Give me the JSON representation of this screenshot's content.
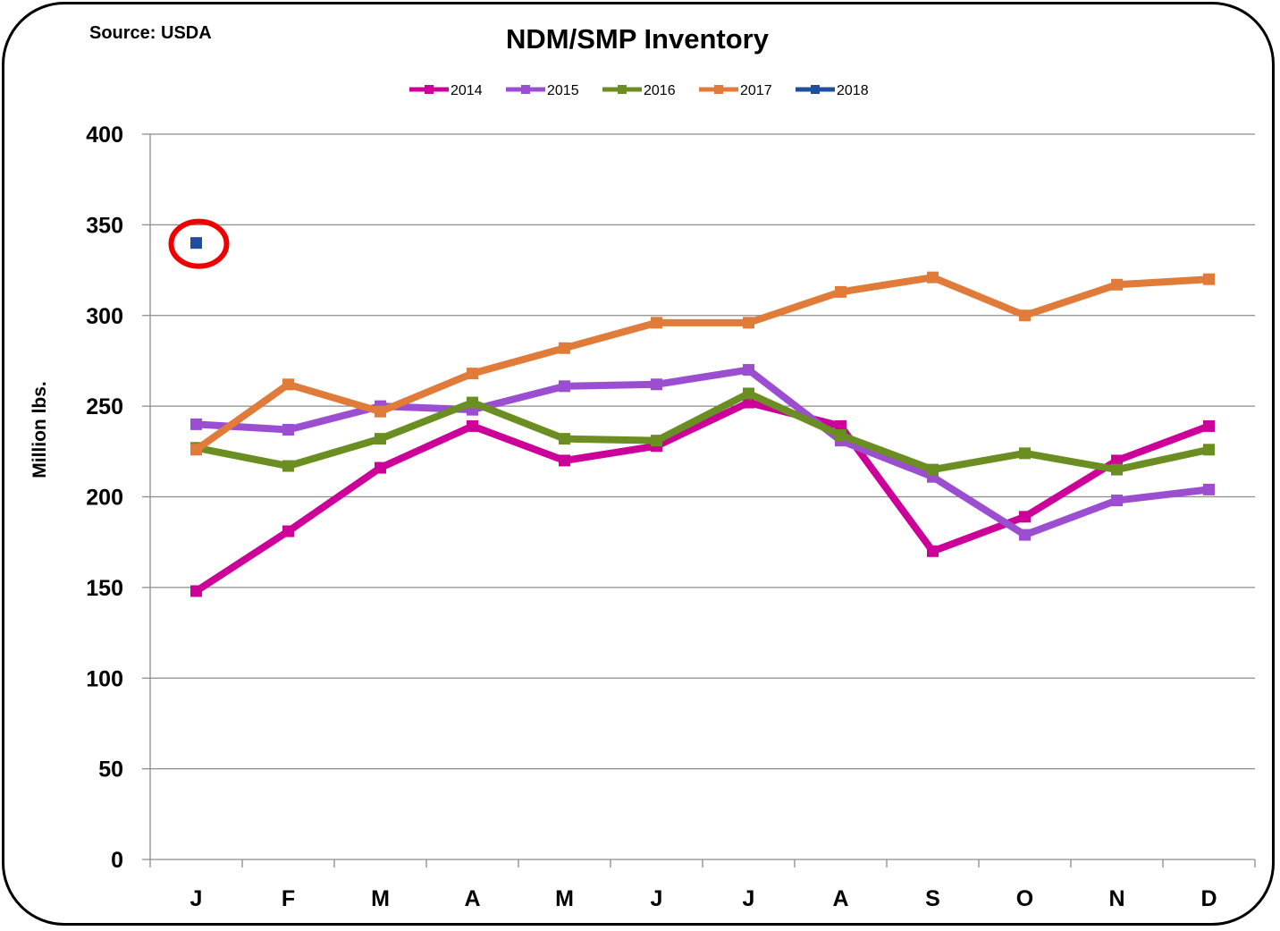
{
  "chart_data": {
    "type": "line",
    "title": "NDM/SMP Inventory",
    "source_note": "Source: USDA",
    "ylabel": "Million lbs.",
    "xlabel": "",
    "categories": [
      "J",
      "F",
      "M",
      "A",
      "M",
      "J",
      "J",
      "A",
      "S",
      "O",
      "N",
      "D"
    ],
    "ylim": [
      0,
      400
    ],
    "yticks": [
      0,
      50,
      100,
      150,
      200,
      250,
      300,
      350,
      400
    ],
    "grid": true,
    "legend_position": "top",
    "series": [
      {
        "name": "2014",
        "color": "#CC0099",
        "values": [
          148,
          181,
          216,
          239,
          220,
          228,
          252,
          239,
          170,
          189,
          220,
          239
        ]
      },
      {
        "name": "2015",
        "color": "#9B4FD0",
        "values": [
          240,
          237,
          250,
          248,
          261,
          262,
          270,
          231,
          211,
          179,
          198,
          204
        ]
      },
      {
        "name": "2016",
        "color": "#6B8E23",
        "values": [
          227,
          217,
          232,
          252,
          232,
          231,
          257,
          234,
          215,
          224,
          215,
          226
        ]
      },
      {
        "name": "2017",
        "color": "#E07B39",
        "values": [
          226,
          262,
          247,
          268,
          282,
          296,
          296,
          313,
          321,
          300,
          317,
          320
        ]
      },
      {
        "name": "2018",
        "color": "#1F4E9E",
        "values": [
          340,
          null,
          null,
          null,
          null,
          null,
          null,
          null,
          null,
          null,
          null,
          null
        ]
      }
    ],
    "annotations": [
      {
        "type": "circle",
        "target": "2018 J",
        "color": "#EE0000"
      }
    ]
  }
}
